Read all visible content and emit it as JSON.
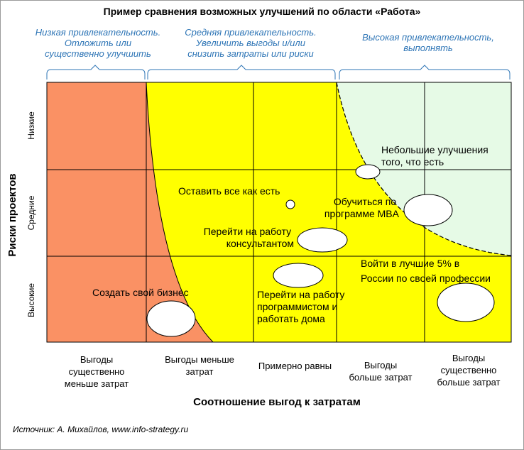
{
  "title": "Пример сравнения возможных улучшений по области «Работа»",
  "zones": [
    {
      "lines": [
        "Низкая привлекательность.",
        "Отложить или",
        "существенно улучшить"
      ]
    },
    {
      "lines": [
        "Средняя привлекательность.",
        "Увеличить выгоды и/или",
        "снизить затраты или риски"
      ]
    },
    {
      "lines": [
        "Высокая привлекательность,",
        "выполнять"
      ]
    }
  ],
  "y_axis": {
    "title": "Риски проектов",
    "levels": [
      "Низкие",
      "Средние",
      "Высокие"
    ]
  },
  "x_axis": {
    "title": "Соотношение выгод к затратам",
    "categories": [
      [
        "Выгоды",
        "существенно",
        "меньше затрат"
      ],
      [
        "Выгоды меньше",
        "затрат"
      ],
      [
        "Примерно равны"
      ],
      [
        "Выгоды",
        "больше затрат"
      ],
      [
        "Выгоды",
        "существенно",
        "больше затрат"
      ]
    ]
  },
  "colors": {
    "low_zone": "#fa9164",
    "mid_zone": "#ffff00",
    "high_zone": "#e6fae6",
    "zone_label": "#2e75b6"
  },
  "options": [
    {
      "lines": [
        "Небольшие улучшения",
        "того, что есть"
      ]
    },
    {
      "lines": [
        "Оставить все как есть"
      ]
    },
    {
      "lines": [
        "Обучиться по",
        "программе MBA"
      ]
    },
    {
      "lines": [
        "Перейти на работу",
        "консультантом"
      ]
    },
    {
      "lines": [
        "Войти в лучшие 5% в",
        "России по своей профессии"
      ]
    },
    {
      "lines": [
        "Создать свой бизнес"
      ]
    },
    {
      "lines": [
        "Перейти на работу",
        "программистом и",
        "работать дома"
      ]
    }
  ],
  "source": "Источник: А. Михайлов, www.info-strategy.ru"
}
